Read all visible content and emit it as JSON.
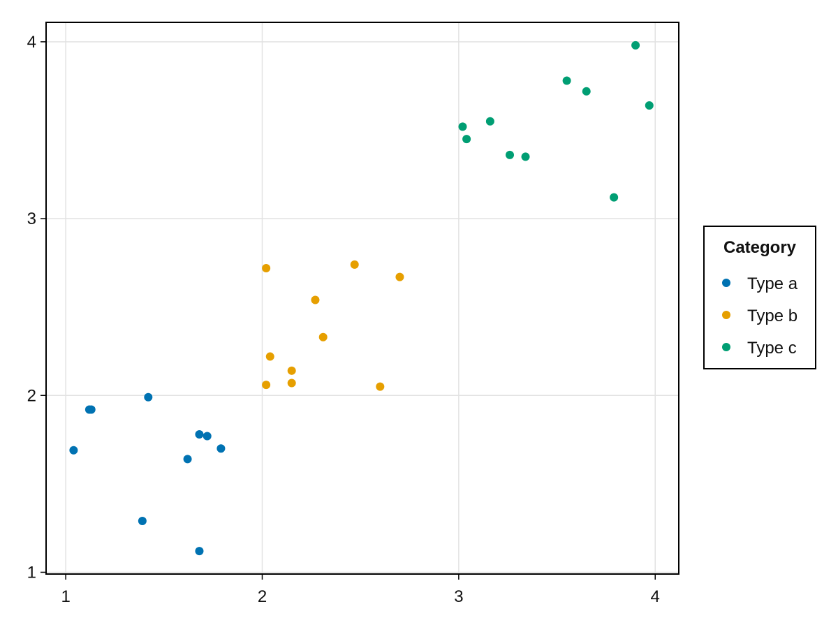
{
  "chart_data": {
    "type": "scatter",
    "xlim": [
      0.9,
      4.12
    ],
    "ylim": [
      0.99,
      4.11
    ],
    "x_ticks": [
      1,
      2,
      3,
      4
    ],
    "y_ticks": [
      1,
      2,
      3,
      4
    ],
    "x_tick_labels": [
      "1",
      "2",
      "3",
      "4"
    ],
    "y_tick_labels": [
      "1",
      "2",
      "3",
      "4"
    ],
    "grid": true,
    "legend": {
      "title": "Category",
      "placement": "right"
    },
    "series": [
      {
        "name": "Type a",
        "color": "#0072B2",
        "points": [
          [
            1.04,
            1.69
          ],
          [
            1.12,
            1.92
          ],
          [
            1.13,
            1.92
          ],
          [
            1.42,
            1.99
          ],
          [
            1.39,
            1.29
          ],
          [
            1.62,
            1.64
          ],
          [
            1.68,
            1.78
          ],
          [
            1.72,
            1.77
          ],
          [
            1.79,
            1.7
          ],
          [
            1.68,
            1.12
          ]
        ]
      },
      {
        "name": "Type b",
        "color": "#E69F00",
        "points": [
          [
            2.02,
            2.72
          ],
          [
            2.04,
            2.22
          ],
          [
            2.02,
            2.06
          ],
          [
            2.15,
            2.14
          ],
          [
            2.15,
            2.07
          ],
          [
            2.27,
            2.54
          ],
          [
            2.31,
            2.33
          ],
          [
            2.47,
            2.74
          ],
          [
            2.6,
            2.05
          ],
          [
            2.7,
            2.67
          ]
        ]
      },
      {
        "name": "Type c",
        "color": "#009E73",
        "points": [
          [
            3.02,
            3.52
          ],
          [
            3.04,
            3.45
          ],
          [
            3.16,
            3.55
          ],
          [
            3.26,
            3.36
          ],
          [
            3.34,
            3.35
          ],
          [
            3.55,
            3.78
          ],
          [
            3.65,
            3.72
          ],
          [
            3.79,
            3.12
          ],
          [
            3.9,
            3.98
          ],
          [
            3.97,
            3.64
          ]
        ]
      }
    ]
  }
}
